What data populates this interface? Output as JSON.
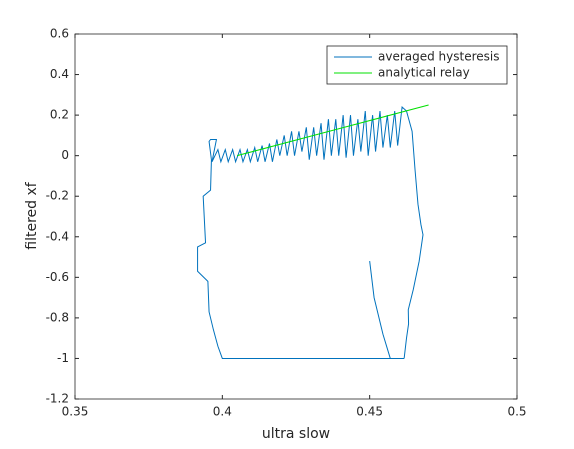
{
  "chart_data": {
    "type": "line",
    "xlabel": "ultra slow",
    "ylabel": "filtered xf",
    "xlim": [
      0.35,
      0.5
    ],
    "xticks": [
      0.35,
      0.4,
      0.45,
      0.5
    ],
    "ylim": [
      -1.2,
      0.6
    ],
    "yticks": [
      -1.2,
      -1,
      -0.8,
      -0.6,
      -0.4,
      -0.2,
      0,
      0.2,
      0.4,
      0.6
    ],
    "legend": "upper right",
    "series": [
      {
        "name": "averaged hysteresis",
        "color": "#0072bd",
        "x": [
          0.45,
          0.4515,
          0.4545,
          0.457,
          0.4617,
          0.43,
          0.4,
          0.3985,
          0.397,
          0.3955,
          0.3951,
          0.3916,
          0.3916,
          0.3943,
          0.3935,
          0.396,
          0.3963,
          0.3955,
          0.396,
          0.398,
          0.3965,
          0.3985,
          0.3995,
          0.401,
          0.402,
          0.4035,
          0.4045,
          0.406,
          0.407,
          0.4085,
          0.4095,
          0.411,
          0.412,
          0.4135,
          0.4145,
          0.416,
          0.417,
          0.4185,
          0.4195,
          0.421,
          0.422,
          0.4235,
          0.4245,
          0.426,
          0.427,
          0.4285,
          0.4295,
          0.431,
          0.432,
          0.4335,
          0.4345,
          0.436,
          0.437,
          0.4385,
          0.4395,
          0.441,
          0.442,
          0.4435,
          0.4445,
          0.446,
          0.447,
          0.4485,
          0.4495,
          0.451,
          0.452,
          0.4535,
          0.4545,
          0.456,
          0.457,
          0.4585,
          0.4595,
          0.461,
          0.4625,
          0.4644,
          0.4654,
          0.4664,
          0.4674,
          0.4681,
          0.4668,
          0.4648,
          0.4631,
          0.4632,
          0.4625,
          0.4617
        ],
        "y": [
          -0.52,
          -0.7,
          -0.88,
          -1,
          -1,
          -1,
          -1,
          -0.94,
          -0.86,
          -0.77,
          -0.62,
          -0.57,
          -0.45,
          -0.43,
          -0.2,
          -0.17,
          -0.02,
          0.07,
          0.08,
          0.08,
          -0.03,
          0.03,
          -0.03,
          0.03,
          -0.03,
          0.03,
          -0.03,
          0.03,
          -0.03,
          0.03,
          -0.03,
          0.04,
          -0.03,
          0.05,
          -0.03,
          0.06,
          -0.03,
          0.08,
          0,
          0.1,
          0,
          0.12,
          0,
          0.12,
          0.02,
          0.14,
          -0.02,
          0.14,
          0,
          0.16,
          -0.02,
          0.18,
          0,
          0.18,
          0,
          0.2,
          -0.01,
          0.2,
          0,
          0.18,
          0.02,
          0.22,
          0,
          0.2,
          0.02,
          0.22,
          0.04,
          0.2,
          0.04,
          0.22,
          0.05,
          0.24,
          0.22,
          0.12,
          -0.07,
          -0.24,
          -0.34,
          -0.39,
          -0.52,
          -0.66,
          -0.76,
          -0.83,
          -0.9,
          -1
        ]
      },
      {
        "name": "analytical relay",
        "color": "#00e000",
        "x": [
          0.405,
          0.47
        ],
        "y": [
          0,
          0.25
        ]
      }
    ]
  }
}
